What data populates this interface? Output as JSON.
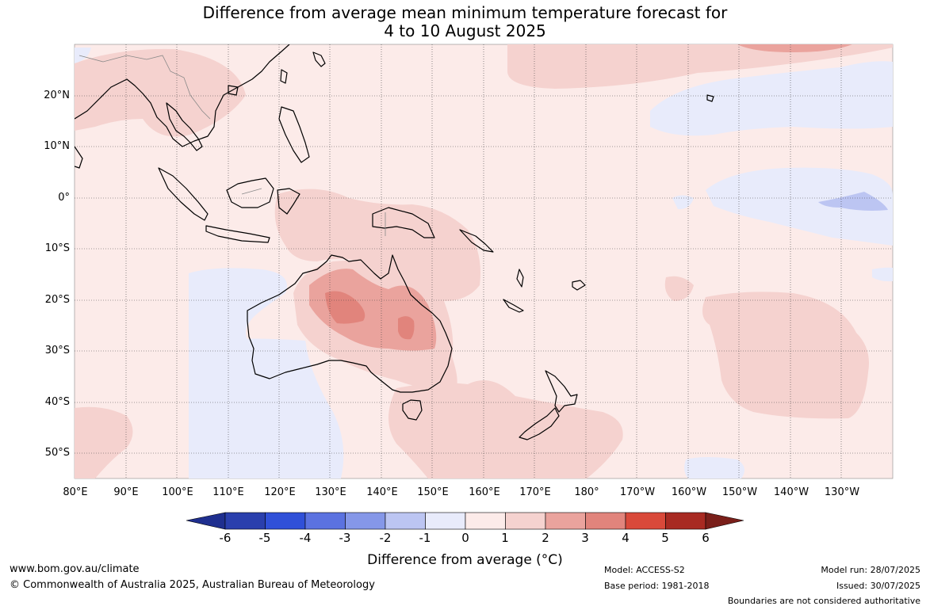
{
  "title": {
    "line1": "Difference from average mean minimum temperature forecast for",
    "line2": "4 to 10 August 2025"
  },
  "map": {
    "lat_labels": [
      "20°N",
      "10°N",
      "0°",
      "10°S",
      "20°S",
      "30°S",
      "40°S",
      "50°S"
    ],
    "lon_labels": [
      "80°E",
      "90°E",
      "100°E",
      "110°E",
      "120°E",
      "130°E",
      "140°E",
      "150°E",
      "160°E",
      "170°E",
      "180°",
      "170°W",
      "160°W",
      "150°W",
      "140°W",
      "130°W"
    ],
    "ocean_base_color": "#fcebe9",
    "gridlines": "dotted"
  },
  "colorbar": {
    "ticks": [
      "-6",
      "-5",
      "-4",
      "-3",
      "-2",
      "-1",
      "0",
      "1",
      "2",
      "3",
      "4",
      "5",
      "6"
    ],
    "colors": [
      "#1f2f8f",
      "#2a3fad",
      "#3050d8",
      "#5b72e0",
      "#8597e8",
      "#bcc5f2",
      "#e8ebfb",
      "#fcebe9",
      "#f5d2cf",
      "#eaa39d",
      "#e1847c",
      "#d9493a",
      "#a82a22",
      "#7a1f1a"
    ],
    "label": "Difference from average (°C)"
  },
  "footer": {
    "website": "www.bom.gov.au/climate",
    "copyright": "© Commonwealth of Australia 2025, Australian Bureau of Meteorology",
    "model": "Model: ACCESS-S2",
    "base_period": "Base period: 1981-2018",
    "model_run": "Model run: 28/07/2025",
    "issued": "Issued: 30/07/2025",
    "disclaimer": "Boundaries are not considered authoritative"
  }
}
